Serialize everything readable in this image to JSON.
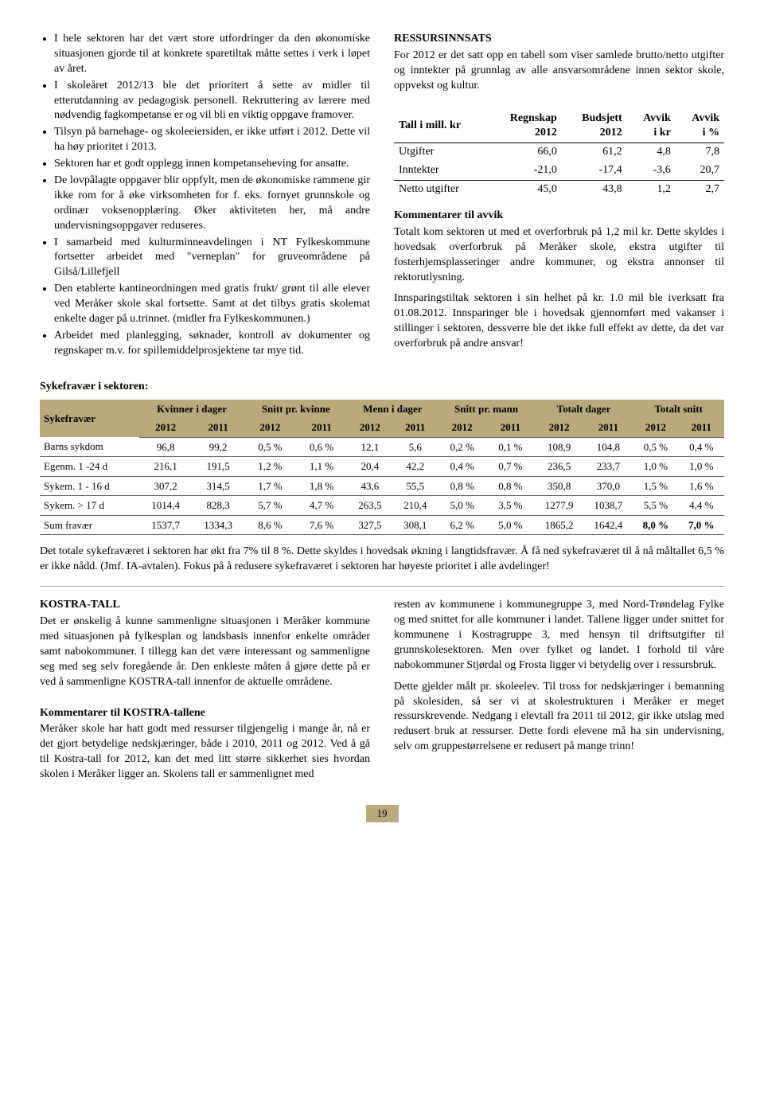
{
  "left_bullets": [
    "I hele sektoren har det vært store utfordringer da den økonomiske situasjonen gjorde til at konkrete sparetiltak måtte settes i verk i løpet av året.",
    "I skoleåret 2012/13 ble det prioritert å sette av midler til etterutdanning av pedagogisk personell. Rekruttering av lærere med nødvendig fagkompetanse er og vil bli en viktig oppgave framover.",
    "Tilsyn på barnehage- og skoleeiersiden, er ikke utført i 2012. Dette vil ha høy prioritet i 2013.",
    "Sektoren har et godt opplegg innen kompetanseheving for ansatte.",
    "De lovpålagte oppgaver blir oppfylt, men de økonomiske rammene gir ikke rom for å øke virksomheten for f. eks. fornyet grunnskole og ordinær voksenopplæring. Øker aktiviteten her, må andre undervisningsoppgaver reduseres.",
    "I samarbeid med kulturminneavdelingen i NT Fylkeskommune fortsetter arbeidet med \"verneplan\" for gruveområdene på Gilså/Lillefjell",
    "Den etablerte kantineordningen med gratis frukt/ grønt til alle elever ved Meråker skole skal fortsette. Samt at det tilbys gratis skolemat enkelte dager på u.trinnet. (midler fra Fylkeskommunen.)",
    "Arbeidet med planlegging, søknader, kontroll av dokumenter og regnskaper m.v. for spillemiddelprosjektene tar mye tid."
  ],
  "right": {
    "ressurs_title": "RESSURSINNSATS",
    "ressurs_intro": "For 2012 er det satt opp en tabell som viser samlede brutto/netto utgifter og inntekter på grunnlag av alle ansvarsområdene innen sektor skole, oppvekst og kultur.",
    "fin_header": [
      "Tall i mill. kr",
      "Regnskap 2012",
      "Budsjett 2012",
      "Avvik i kr",
      "Avvik i %"
    ],
    "fin_rows": [
      [
        "Utgifter",
        "66,0",
        "61,2",
        "4,8",
        "7,8"
      ],
      [
        "Inntekter",
        "-21,0",
        "-17,4",
        "-3,6",
        "20,7"
      ],
      [
        "Netto utgifter",
        "45,0",
        "43,8",
        "1,2",
        "2,7"
      ]
    ],
    "komm_title": "Kommentarer til avvik",
    "komm_p1": "Totalt kom sektoren ut med et overforbruk på 1,2 mil kr. Dette skyldes i hovedsak overforbruk på Meråker skole, ekstra utgifter til fosterhjemsplasseringer andre kommuner, og ekstra annonser til rektorutlysning.",
    "komm_p2": "Innsparingstiltak sektoren i sin helhet på kr. 1.0 mil ble iverksatt fra 01.08.2012. Innsparinger ble i hovedsak gjennomført med vakanser i stillinger i sektoren, dessverre ble det ikke full effekt av dette, da det var overforbruk på andre ansvar!"
  },
  "syk_title": "Sykefravær i sektoren",
  "syk_header1": [
    "Sykefravær",
    "Kvinner i dager",
    "Snitt pr. kvinne",
    "Menn i dager",
    "Snitt pr. mann",
    "Totalt dager",
    "Totalt snitt"
  ],
  "syk_header2": [
    "2012",
    "2011",
    "2012",
    "2011",
    "2012",
    "2011",
    "2012",
    "2011",
    "2012",
    "2011",
    "2012",
    "2011"
  ],
  "syk_rows": [
    [
      "Barns sykdom",
      "96,8",
      "99,2",
      "0,5 %",
      "0,6 %",
      "12,1",
      "5,6",
      "0,2 %",
      "0,1 %",
      "108,9",
      "104,8",
      "0,5 %",
      "0,4 %"
    ],
    [
      "Egenm. 1 -24 d",
      "216,1",
      "191,5",
      "1,2 %",
      "1,1 %",
      "20,4",
      "42,2",
      "0,4 %",
      "0,7 %",
      "236,5",
      "233,7",
      "1,0 %",
      "1,0 %"
    ],
    [
      "Sykem. 1 - 16 d",
      "307,2",
      "314,5",
      "1,7 %",
      "1,8 %",
      "43,6",
      "55,5",
      "0,8 %",
      "0,8 %",
      "350,8",
      "370,0",
      "1,5 %",
      "1,6 %"
    ],
    [
      "Sykem. > 17 d",
      "1014,4",
      "828,3",
      "5,7 %",
      "4,7 %",
      "263,5",
      "210,4",
      "5,0 %",
      "3,5 %",
      "1277,9",
      "1038,7",
      "5,5 %",
      "4,4 %"
    ],
    [
      "Sum fravær",
      "1537,7",
      "1334,3",
      "8,6 %",
      "7,6 %",
      "327,5",
      "308,1",
      "6,2 %",
      "5,0 %",
      "1865,2",
      "1642,4",
      "8,0 %",
      "7,0 %"
    ]
  ],
  "syk_p": "Det totale sykefraværet i sektoren har økt fra 7% til 8 %. Dette skyldes i hovedsak økning i langtidsfravær. Å få ned sykefraværet til å nå måltallet 6,5 % er ikke nådd. (Jmf. IA-avtalen). Fokus på å redusere sykefraværet i sektoren har høyeste prioritet i alle avdelinger!",
  "bottom_left": {
    "kostra_title": "KOSTRA-TALL",
    "kostra_p": "Det er ønskelig å kunne sammenligne situasjonen i Meråker kommune med situasjonen på fylkesplan og landsbasis innenfor enkelte områder samt nabokommuner. I tillegg kan det være interessant og sammenligne seg med seg selv foregående år. Den enkleste måten å gjøre dette på er ved å sammenligne KOSTRA-tall innenfor de aktuelle områdene.",
    "komm2_title": "Kommentarer til KOSTRA-tallene",
    "komm2_p": "Meråker skole har hatt godt med ressurser tilgjengelig i mange år, nå er det gjort betydelige nedskjæringer, både i 2010, 2011 og 2012. Ved å gå til Kostra-tall for 2012, kan det med litt større sikkerhet sies hvordan skolen i Meråker ligger an. Skolens tall er sammenlignet med"
  },
  "bottom_right": {
    "p1": "resten av kommunene i kommunegruppe 3, med Nord-Trøndelag Fylke og med snittet for alle kommuner i landet. Tallene ligger under snittet for kommunene i Kostragruppe 3, med hensyn til driftsutgifter til grunnskolesektoren. Men over fylket og landet. I forhold til våre nabokommuner Stjørdal og Frosta ligger vi betydelig over i ressursbruk.",
    "p2": "Dette gjelder målt pr. skoleelev. Til tross for nedskjæringer i bemanning på skolesiden, så ser vi at skolestrukturen i Meråker er meget ressurskrevende. Nedgang i elevtall fra 2011 til 2012, gir ikke utslag med redusert bruk at ressurser. Dette fordi elevene må ha sin undervisning, selv om gruppestørrelsene er redusert på mange trinn!"
  },
  "page_num": "19"
}
